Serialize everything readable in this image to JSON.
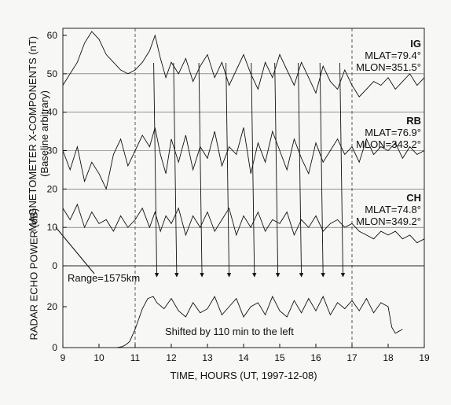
{
  "chart_data": {
    "type": "line",
    "xlabel": "TIME, HOURS (UT, 1997-12-08)",
    "xlim": [
      9,
      19
    ],
    "xticks": [
      "9",
      "10",
      "11",
      "12",
      "13",
      "14",
      "15",
      "16",
      "17",
      "18",
      "19"
    ],
    "upper_panel": {
      "ylabel": "MAGNETOMETER X-COMPONENTS (nT)",
      "ylabel_sub": "(Baseline arbitrary)",
      "ylim": [
        0,
        60
      ],
      "yticks": [
        "0",
        "10",
        "20",
        "30",
        "40",
        "50",
        "60"
      ],
      "series": [
        {
          "name": "IG",
          "mlat": "MLAT=79.4°",
          "mlon": "MLON=351.5°",
          "x": [
            9.0,
            9.2,
            9.4,
            9.6,
            9.8,
            10.0,
            10.2,
            10.4,
            10.6,
            10.8,
            11.0,
            11.2,
            11.4,
            11.55,
            11.7,
            11.85,
            12.0,
            12.2,
            12.4,
            12.6,
            12.8,
            13.0,
            13.2,
            13.4,
            13.6,
            13.8,
            14.0,
            14.2,
            14.4,
            14.6,
            14.8,
            15.0,
            15.2,
            15.4,
            15.6,
            15.8,
            16.0,
            16.2,
            16.4,
            16.6,
            16.8,
            17.0,
            17.2,
            17.4,
            17.6,
            17.8,
            18.0,
            18.2,
            18.4,
            18.6,
            18.8,
            19.0
          ],
          "y": [
            47,
            50,
            53,
            58,
            61,
            59,
            55,
            53,
            51,
            50,
            51,
            53,
            56,
            60,
            54,
            49,
            53,
            50,
            54,
            48,
            52,
            55,
            49,
            53,
            47,
            51,
            55,
            50,
            46,
            53,
            49,
            55,
            51,
            47,
            53,
            49,
            45,
            52,
            48,
            46,
            51,
            47,
            44,
            46,
            48,
            47,
            49,
            46,
            48,
            50,
            47,
            49
          ]
        },
        {
          "name": "RB",
          "mlat": "MLAT=76.9°",
          "mlon": "MLON=343.2°",
          "x": [
            9.0,
            9.2,
            9.4,
            9.6,
            9.8,
            10.0,
            10.2,
            10.4,
            10.6,
            10.8,
            11.0,
            11.2,
            11.4,
            11.55,
            11.7,
            11.85,
            12.0,
            12.2,
            12.4,
            12.6,
            12.8,
            13.0,
            13.2,
            13.4,
            13.6,
            13.8,
            14.0,
            14.2,
            14.4,
            14.6,
            14.8,
            15.0,
            15.2,
            15.4,
            15.6,
            15.8,
            16.0,
            16.2,
            16.4,
            16.6,
            16.8,
            17.0,
            17.2,
            17.4,
            17.6,
            17.8,
            18.0,
            18.2,
            18.4,
            18.6,
            18.8,
            19.0
          ],
          "y": [
            30,
            25,
            31,
            22,
            27,
            24,
            20,
            29,
            33,
            26,
            30,
            34,
            31,
            36,
            29,
            24,
            33,
            27,
            34,
            25,
            31,
            28,
            35,
            26,
            31,
            29,
            36,
            24,
            32,
            27,
            35,
            30,
            25,
            33,
            28,
            24,
            32,
            27,
            30,
            33,
            29,
            31,
            27,
            33,
            29,
            31,
            30,
            32,
            28,
            31,
            29,
            30
          ]
        },
        {
          "name": "CH",
          "mlat": "MLAT=74.8°",
          "mlon": "MLON=349.2°",
          "x": [
            9.0,
            9.2,
            9.4,
            9.6,
            9.8,
            10.0,
            10.2,
            10.4,
            10.6,
            10.8,
            11.0,
            11.2,
            11.4,
            11.55,
            11.7,
            11.85,
            12.0,
            12.2,
            12.4,
            12.6,
            12.8,
            13.0,
            13.2,
            13.4,
            13.6,
            13.8,
            14.0,
            14.2,
            14.4,
            14.6,
            14.8,
            15.0,
            15.2,
            15.4,
            15.6,
            15.8,
            16.0,
            16.2,
            16.4,
            16.6,
            16.8,
            17.0,
            17.2,
            17.4,
            17.6,
            17.8,
            18.0,
            18.2,
            18.4,
            18.6,
            18.8,
            19.0
          ],
          "y": [
            15,
            12,
            16,
            10,
            14,
            11,
            12,
            9,
            13,
            10,
            12,
            15,
            10,
            14,
            9,
            13,
            11,
            15,
            8,
            13,
            10,
            14,
            9,
            12,
            15,
            8,
            13,
            10,
            14,
            9,
            12,
            11,
            14,
            8,
            12,
            10,
            13,
            9,
            11,
            12,
            10,
            11,
            9,
            8,
            7,
            9,
            8,
            9,
            7,
            8,
            6,
            7
          ]
        }
      ]
    },
    "lower_panel": {
      "ylabel": "RADAR ECHO POWER (dB)",
      "ylim": [
        0,
        30
      ],
      "yticks": [
        "0",
        "20"
      ],
      "annotation_range": "Range=1575km",
      "annotation_shift": "Shifted by 110 min to the left",
      "series": [
        {
          "x": [
            10.5,
            10.65,
            10.75,
            10.85,
            11.0,
            11.1,
            11.2,
            11.35,
            11.5,
            11.6,
            11.8,
            12.0,
            12.2,
            12.4,
            12.6,
            12.8,
            13.0,
            13.2,
            13.4,
            13.6,
            13.8,
            14.0,
            14.2,
            14.4,
            14.6,
            14.8,
            15.0,
            15.2,
            15.4,
            15.6,
            15.8,
            16.0,
            16.2,
            16.4,
            16.6,
            16.8,
            17.0,
            17.2,
            17.4,
            17.6,
            17.8,
            18.0,
            18.1,
            18.2,
            18.3,
            18.4
          ],
          "y": [
            0,
            0.5,
            1.5,
            3,
            9,
            14,
            19,
            24,
            25,
            22,
            19,
            24,
            18,
            15,
            22,
            17,
            19,
            25,
            16,
            20,
            24,
            15,
            20,
            22,
            16,
            25,
            18,
            15,
            23,
            17,
            24,
            18,
            25,
            16,
            22,
            19,
            23,
            18,
            24,
            17,
            22,
            20,
            10,
            7,
            8,
            9
          ]
        }
      ]
    },
    "event_times": [
      11.6,
      12.15,
      12.85,
      13.6,
      14.3,
      14.95,
      15.6,
      16.2,
      16.75
    ],
    "dashed_verticals": [
      11.0,
      17.0
    ]
  }
}
